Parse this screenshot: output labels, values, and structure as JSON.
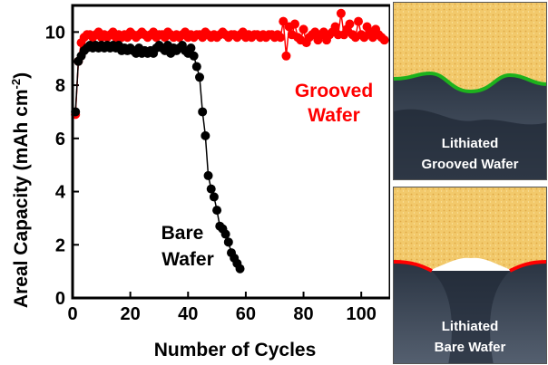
{
  "chart_data": {
    "type": "scatter",
    "title": "",
    "xlabel": "Number of Cycles",
    "ylabel_main": "Areal Capacity (mAh cm",
    "ylabel_sup": "-2",
    "ylabel_end": ")",
    "xlim": [
      0,
      110
    ],
    "ylim": [
      0,
      11
    ],
    "xticks": [
      0,
      20,
      40,
      60,
      80,
      100
    ],
    "yticks": [
      0,
      2,
      4,
      6,
      8,
      10
    ],
    "grid": false,
    "series": [
      {
        "label_line1": "Grooved",
        "label_line2": "Wafer",
        "color": "#ff0000",
        "x": [
          1,
          2,
          3,
          4,
          5,
          6,
          7,
          8,
          9,
          10,
          11,
          12,
          13,
          14,
          15,
          16,
          17,
          18,
          19,
          20,
          21,
          22,
          23,
          24,
          25,
          26,
          27,
          28,
          29,
          30,
          31,
          32,
          33,
          34,
          35,
          36,
          37,
          38,
          39,
          40,
          41,
          42,
          43,
          44,
          45,
          46,
          47,
          48,
          49,
          50,
          51,
          52,
          53,
          54,
          55,
          56,
          57,
          58,
          59,
          60,
          61,
          62,
          63,
          64,
          65,
          66,
          67,
          68,
          69,
          70,
          71,
          72,
          73,
          74,
          75,
          76,
          77,
          78,
          79,
          80,
          81,
          82,
          83,
          84,
          85,
          86,
          87,
          88,
          89,
          90,
          91,
          92,
          93,
          94,
          95,
          96,
          97,
          98,
          99,
          100,
          101,
          102,
          103,
          104,
          105,
          106,
          107,
          108
        ],
        "y": [
          6.9,
          8.9,
          9.6,
          9.8,
          9.9,
          9.9,
          9.8,
          9.9,
          10.0,
          9.8,
          9.9,
          9.8,
          9.9,
          10.0,
          9.8,
          9.9,
          9.8,
          9.9,
          9.8,
          10.0,
          9.9,
          9.8,
          9.9,
          10.0,
          9.9,
          9.8,
          9.9,
          10.0,
          9.8,
          9.9,
          9.9,
          9.8,
          10.0,
          9.9,
          9.8,
          9.9,
          9.8,
          9.9,
          10.0,
          9.8,
          9.9,
          9.8,
          9.9,
          9.9,
          9.8,
          10.0,
          9.9,
          9.8,
          9.9,
          9.8,
          9.9,
          10.0,
          9.9,
          9.8,
          9.9,
          9.9,
          9.8,
          9.9,
          10.0,
          9.8,
          9.9,
          9.8,
          9.9,
          9.9,
          9.8,
          9.9,
          9.8,
          9.9,
          9.9,
          9.8,
          9.9,
          9.8,
          10.4,
          9.1,
          10.2,
          9.9,
          10.3,
          9.8,
          9.7,
          10.1,
          9.6,
          9.8,
          9.9,
          10.0,
          9.7,
          9.9,
          10.0,
          9.7,
          9.9,
          10.0,
          10.2,
          9.9,
          10.7,
          9.9,
          10.1,
          10.3,
          9.9,
          9.8,
          10.4,
          9.9,
          9.8,
          10.2,
          10.0,
          9.8,
          10.1,
          9.9,
          9.8,
          9.7
        ]
      },
      {
        "label_line1": "Bare",
        "label_line2": "Wafer",
        "color": "#000000",
        "x": [
          1,
          2,
          3,
          4,
          5,
          6,
          7,
          8,
          9,
          10,
          11,
          12,
          13,
          14,
          15,
          16,
          17,
          18,
          19,
          20,
          21,
          22,
          23,
          24,
          25,
          26,
          27,
          28,
          29,
          30,
          31,
          32,
          33,
          34,
          35,
          36,
          37,
          38,
          39,
          40,
          41,
          42,
          43,
          44,
          45,
          46,
          47,
          48,
          49,
          50,
          51,
          52,
          53,
          54,
          55,
          56,
          57,
          58
        ],
        "y": [
          7.0,
          8.9,
          9.1,
          9.3,
          9.4,
          9.5,
          9.4,
          9.5,
          9.4,
          9.5,
          9.4,
          9.5,
          9.4,
          9.5,
          9.4,
          9.5,
          9.3,
          9.4,
          9.3,
          9.4,
          9.3,
          9.2,
          9.4,
          9.2,
          9.3,
          9.2,
          9.3,
          9.2,
          9.4,
          9.5,
          9.4,
          9.3,
          9.5,
          9.2,
          9.4,
          9.3,
          9.4,
          9.5,
          9.3,
          9.2,
          9.4,
          9.1,
          8.7,
          8.3,
          7.0,
          6.1,
          4.6,
          4.1,
          3.8,
          3.3,
          2.7,
          2.6,
          2.4,
          2.1,
          1.7,
          1.5,
          1.3,
          1.1
        ]
      }
    ]
  },
  "panels": {
    "top": {
      "caption_line1": "Lithiated",
      "caption_line2": "Grooved Wafer"
    },
    "bottom": {
      "caption_line1": "Lithiated",
      "caption_line2": "Bare Wafer"
    }
  },
  "colors": {
    "deposit": "#f2c96b",
    "substrate_dark": "#1e2733",
    "substrate_light": "#556070",
    "sei_grooved": "#1db21d",
    "sei_bare": "#ff0000"
  }
}
